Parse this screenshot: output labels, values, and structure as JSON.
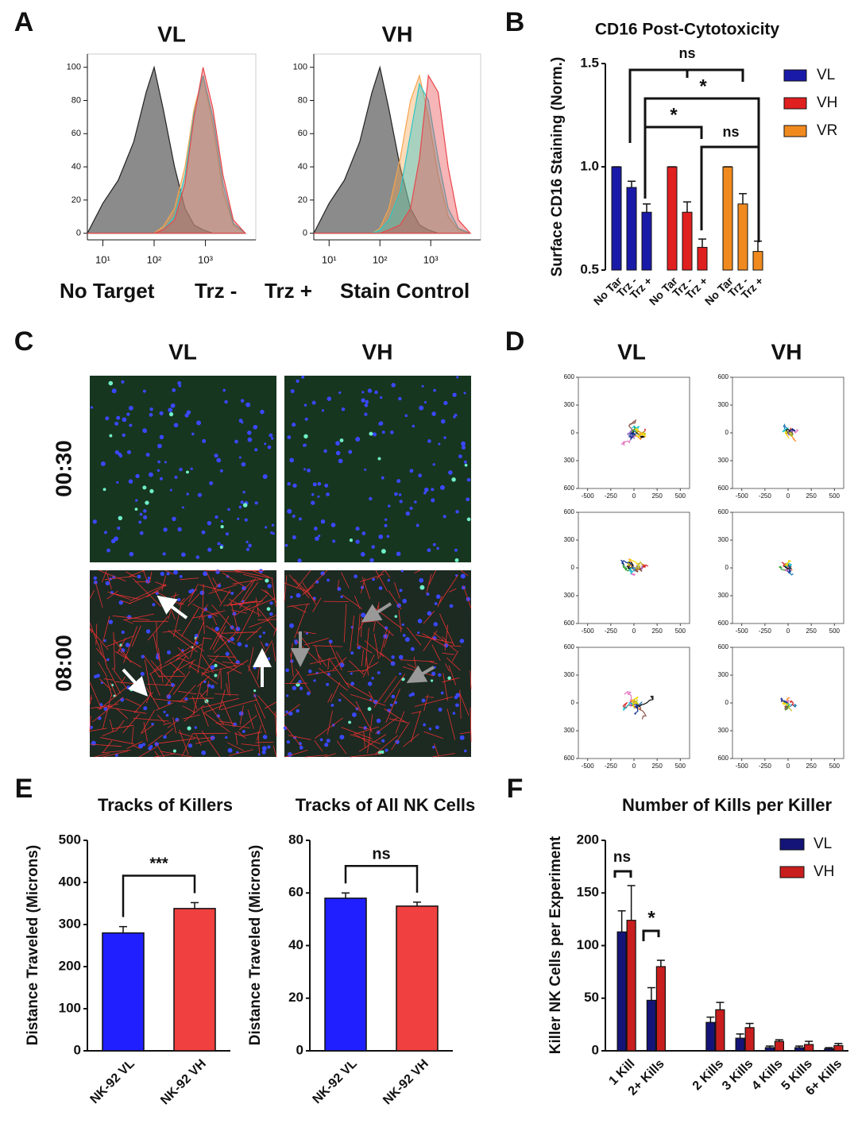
{
  "panels": [
    "A",
    "B",
    "C",
    "D",
    "E",
    "F"
  ],
  "microscopy": {
    "columns": [
      "VL",
      "VH"
    ],
    "rows": [
      "00:30",
      "08:00"
    ]
  },
  "tracks_columns": [
    "VL",
    "VH"
  ],
  "chart_data": [
    {
      "type": "histogram",
      "title": "VL",
      "log_x": true,
      "xlim": [
        5,
        9600
      ],
      "ylim": [
        -4,
        108
      ],
      "xticks": [
        {
          "value": 10,
          "label": "10¹"
        },
        {
          "value": 100,
          "label": "10²"
        },
        {
          "value": 1000,
          "label": "10³"
        }
      ],
      "yticks": [
        0,
        20,
        40,
        60,
        80,
        100
      ],
      "x": [
        5,
        10,
        20,
        40,
        70,
        100,
        150,
        250,
        400,
        600,
        900,
        1400,
        2200,
        3500,
        6000
      ],
      "series": [
        {
          "name": "No Target",
          "color": "#e8474b",
          "values": [
            0,
            0,
            0,
            0,
            0,
            0,
            2,
            8,
            30,
            70,
            100,
            75,
            35,
            8,
            0
          ]
        },
        {
          "name": "Trz -",
          "color": "#2cc5c9",
          "values": [
            0,
            0,
            0,
            0,
            0,
            0,
            2,
            10,
            35,
            72,
            95,
            70,
            30,
            6,
            0
          ]
        },
        {
          "name": "Trz +",
          "color": "#f5a54f",
          "values": [
            0,
            0,
            0,
            0,
            0,
            0,
            4,
            15,
            40,
            75,
            95,
            65,
            25,
            5,
            0
          ]
        },
        {
          "name": "Stain Control",
          "color": "#222222",
          "values": [
            0,
            18,
            32,
            55,
            85,
            100,
            75,
            40,
            15,
            5,
            2,
            0,
            0,
            0,
            0
          ]
        }
      ]
    },
    {
      "type": "histogram",
      "title": "VH",
      "log_x": true,
      "xlim": [
        5,
        9600
      ],
      "ylim": [
        -4,
        108
      ],
      "xticks": [
        {
          "value": 10,
          "label": "10¹"
        },
        {
          "value": 100,
          "label": "10²"
        },
        {
          "value": 1000,
          "label": "10³"
        }
      ],
      "yticks": [
        0,
        20,
        40,
        60,
        80,
        100
      ],
      "x": [
        5,
        10,
        20,
        40,
        70,
        100,
        150,
        250,
        400,
        600,
        900,
        1400,
        2200,
        3500,
        6000
      ],
      "series": [
        {
          "color": "#e8474b",
          "values": [
            0,
            0,
            0,
            0,
            0,
            0,
            2,
            5,
            15,
            45,
            95,
            85,
            40,
            8,
            0
          ]
        },
        {
          "color": "#2cc5c9",
          "values": [
            0,
            0,
            0,
            0,
            0,
            2,
            8,
            25,
            60,
            90,
            80,
            45,
            15,
            3,
            0
          ]
        },
        {
          "color": "#f5a54f",
          "values": [
            0,
            0,
            0,
            0,
            0,
            3,
            15,
            45,
            80,
            95,
            70,
            35,
            10,
            2,
            0
          ]
        },
        {
          "color": "#222222",
          "values": [
            0,
            18,
            32,
            55,
            85,
            100,
            75,
            40,
            15,
            5,
            2,
            0,
            0,
            0,
            0
          ]
        }
      ]
    },
    {
      "type": "bar",
      "title": "CD16 Post-Cytotoxicity",
      "y_label": "Surface CD16 Staining (Norm.)",
      "categories": [
        "No Tar",
        "Trz -",
        "Trz +"
      ],
      "ylim": [
        0.5,
        1.5
      ],
      "yticks": [
        0.5,
        {
          "value": 1,
          "label": "1.0"
        },
        1.5
      ],
      "annotations": [
        "ns",
        "*",
        "*",
        "ns"
      ],
      "series": [
        {
          "name": "VL",
          "color": "#1a1aa8",
          "values": [
            1,
            0.9,
            0.78
          ],
          "errors": [
            0,
            0.03,
            0.04
          ]
        },
        {
          "name": "VH",
          "color": "#e01f1f",
          "values": [
            1,
            0.78,
            0.61
          ],
          "errors": [
            0,
            0.05,
            0.04
          ]
        },
        {
          "name": "VR",
          "color": "#f08a1e",
          "values": [
            1,
            0.82,
            0.59
          ],
          "errors": [
            0,
            0.05,
            0.05
          ]
        }
      ]
    },
    {
      "type": "track",
      "xlim": [
        -600,
        600
      ],
      "ylim": [
        -600,
        600
      ],
      "xticks": [
        -500,
        -250,
        0,
        250,
        500
      ],
      "yticks": [
        600,
        300,
        0,
        {
          "value": -300,
          "label": "300"
        },
        {
          "value": -600,
          "label": "600"
        }
      ]
    },
    {
      "type": "track",
      "xlim": [
        -600,
        600
      ],
      "ylim": [
        -600,
        600
      ],
      "xticks": [
        -500,
        -250,
        0,
        250,
        500
      ],
      "yticks": [
        600,
        300,
        0,
        {
          "value": -300,
          "label": "300"
        },
        {
          "value": -600,
          "label": "600"
        }
      ]
    },
    {
      "type": "track",
      "xlim": [
        -600,
        600
      ],
      "ylim": [
        -600,
        600
      ],
      "xticks": [
        -500,
        -250,
        0,
        250,
        500
      ],
      "yticks": [
        600,
        300,
        0,
        {
          "value": -300,
          "label": "300"
        },
        {
          "value": -600,
          "label": "600"
        }
      ]
    },
    {
      "type": "track",
      "xlim": [
        -600,
        600
      ],
      "ylim": [
        -600,
        600
      ],
      "xticks": [
        -500,
        -250,
        0,
        250,
        500
      ],
      "yticks": [
        600,
        300,
        0,
        {
          "value": -300,
          "label": "300"
        },
        {
          "value": -600,
          "label": "600"
        }
      ]
    },
    {
      "type": "track",
      "xlim": [
        -600,
        600
      ],
      "ylim": [
        -600,
        600
      ],
      "xticks": [
        -500,
        -250,
        0,
        250,
        500
      ],
      "yticks": [
        600,
        300,
        0,
        {
          "value": -300,
          "label": "300"
        },
        {
          "value": -600,
          "label": "600"
        }
      ]
    },
    {
      "type": "track",
      "xlim": [
        -600,
        600
      ],
      "ylim": [
        -600,
        600
      ],
      "xticks": [
        -500,
        -250,
        0,
        250,
        500
      ],
      "yticks": [
        600,
        300,
        0,
        {
          "value": -300,
          "label": "300"
        },
        {
          "value": -600,
          "label": "600"
        }
      ]
    },
    {
      "type": "simplebar",
      "title": "Tracks of Killers",
      "y_label": "Distance Traveled  (Microns)",
      "categories": [
        "NK-92 VL",
        "NK-92 VH"
      ],
      "values": [
        280,
        338
      ],
      "errors": [
        15,
        14
      ],
      "colors": [
        "#1f1fff",
        "#f04040"
      ],
      "ylim": [
        0,
        500
      ],
      "yticks": [
        0,
        100,
        200,
        300,
        400,
        500
      ],
      "annotations": [
        "***"
      ]
    },
    {
      "type": "simplebar",
      "title": "Tracks of All NK Cells",
      "y_label": "Distance Traveled  (Microns)",
      "categories": [
        "NK-92 VL",
        "NK-92 VH"
      ],
      "values": [
        58,
        55
      ],
      "errors": [
        2,
        1.5
      ],
      "colors": [
        "#1f1fff",
        "#f04040"
      ],
      "ylim": [
        0,
        80
      ],
      "yticks": [
        0,
        20,
        40,
        60,
        80
      ],
      "annotations": [
        "ns"
      ]
    },
    {
      "type": "groupbar",
      "title": "Number of Kills per Killer",
      "y_label": "Killer NK Cells per Experiment",
      "categories": [
        "1 Kill",
        "2+ Kills",
        null,
        "2 Kills",
        "3 Kills",
        "4 Kills",
        "5 Kills",
        "6+ Kills"
      ],
      "ylim": [
        0,
        200
      ],
      "yticks": [
        0,
        50,
        100,
        150,
        200
      ],
      "annotations": [
        "ns",
        "*"
      ],
      "series": [
        {
          "name": "VL",
          "color": "#141478",
          "values": [
            113,
            48,
            null,
            27,
            12,
            3,
            3,
            2
          ],
          "errors": [
            20,
            12,
            null,
            5,
            4,
            1.5,
            1.5,
            1
          ]
        },
        {
          "name": "VH",
          "color": "#c81e1e",
          "values": [
            124,
            80,
            null,
            39,
            22,
            9,
            6,
            5
          ],
          "errors": [
            33,
            6,
            null,
            7,
            4,
            1.5,
            3,
            2
          ]
        }
      ]
    }
  ]
}
